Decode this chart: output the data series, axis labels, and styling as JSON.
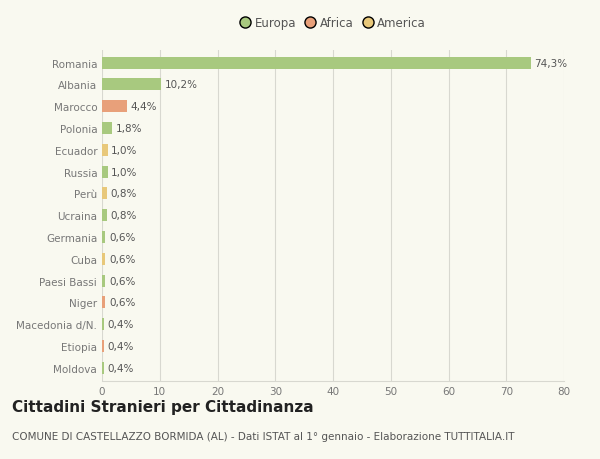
{
  "countries": [
    "Romania",
    "Albania",
    "Marocco",
    "Polonia",
    "Ecuador",
    "Russia",
    "Perù",
    "Ucraina",
    "Germania",
    "Cuba",
    "Paesi Bassi",
    "Niger",
    "Macedonia d/N.",
    "Etiopia",
    "Moldova"
  ],
  "values": [
    74.3,
    10.2,
    4.4,
    1.8,
    1.0,
    1.0,
    0.8,
    0.8,
    0.6,
    0.6,
    0.6,
    0.6,
    0.4,
    0.4,
    0.4
  ],
  "labels": [
    "74,3%",
    "10,2%",
    "4,4%",
    "1,8%",
    "1,0%",
    "1,0%",
    "0,8%",
    "0,8%",
    "0,6%",
    "0,6%",
    "0,6%",
    "0,6%",
    "0,4%",
    "0,4%",
    "0,4%"
  ],
  "categories": [
    "Europa",
    "Europa",
    "Africa",
    "Europa",
    "America",
    "Europa",
    "America",
    "Europa",
    "Europa",
    "America",
    "Europa",
    "Africa",
    "Europa",
    "Africa",
    "Europa"
  ],
  "colors": {
    "Europa": "#a8c97f",
    "Africa": "#e8a07a",
    "America": "#e8c87a"
  },
  "title": "Cittadini Stranieri per Cittadinanza",
  "subtitle": "COMUNE DI CASTELLAZZO BORMIDA (AL) - Dati ISTAT al 1° gennaio - Elaborazione TUTTITALIA.IT",
  "xlim": [
    0,
    80
  ],
  "xticks": [
    0,
    10,
    20,
    30,
    40,
    50,
    60,
    70,
    80
  ],
  "bg_color": "#f9f9f0",
  "grid_color": "#d8d8d0",
  "bar_height": 0.55,
  "label_fontsize": 7.5,
  "tick_fontsize": 7.5,
  "title_fontsize": 11,
  "subtitle_fontsize": 7.5,
  "legend_fontsize": 8.5
}
